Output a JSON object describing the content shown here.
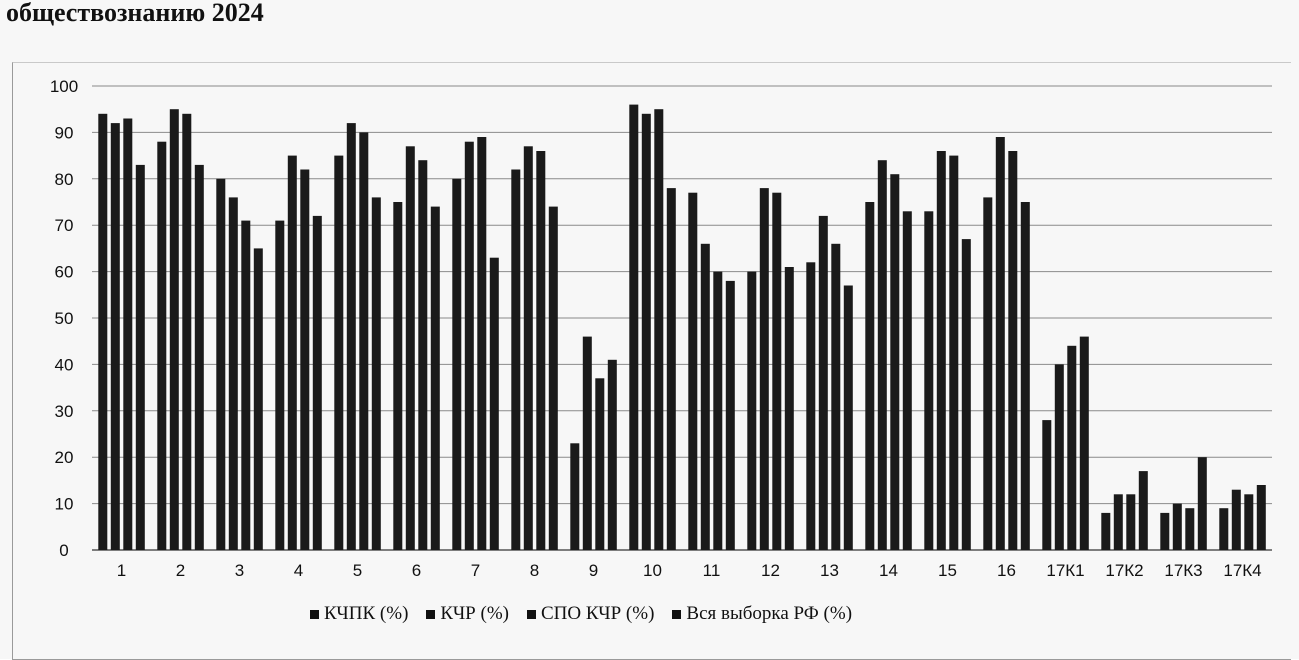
{
  "title_fragment": "обществознанию 2024",
  "chart_data": {
    "type": "bar",
    "categories": [
      "1",
      "2",
      "3",
      "4",
      "5",
      "6",
      "7",
      "8",
      "9",
      "10",
      "11",
      "12",
      "13",
      "14",
      "15",
      "16",
      "17К1",
      "17К2",
      "17К3",
      "17К4"
    ],
    "series": [
      {
        "name": "КЧПК (%)",
        "values": [
          94,
          88,
          80,
          71,
          85,
          75,
          80,
          82,
          23,
          96,
          77,
          60,
          62,
          75,
          73,
          76,
          28,
          8,
          8,
          9
        ]
      },
      {
        "name": "КЧР (%)",
        "values": [
          92,
          95,
          76,
          85,
          92,
          87,
          88,
          87,
          46,
          94,
          66,
          78,
          72,
          84,
          86,
          89,
          40,
          12,
          10,
          13
        ]
      },
      {
        "name": "СПО КЧР (%)",
        "values": [
          93,
          94,
          71,
          82,
          90,
          84,
          89,
          86,
          37,
          95,
          60,
          77,
          66,
          81,
          85,
          86,
          44,
          12,
          9,
          12
        ]
      },
      {
        "name": "Вся выборка РФ (%)",
        "values": [
          83,
          83,
          65,
          72,
          76,
          74,
          63,
          74,
          41,
          78,
          58,
          61,
          57,
          73,
          67,
          75,
          46,
          17,
          20,
          14
        ]
      }
    ],
    "ylim": [
      0,
      100
    ],
    "yticks": [
      "0",
      "10",
      "20",
      "30",
      "40",
      "50",
      "60",
      "70",
      "80",
      "90",
      "100"
    ],
    "grid": true,
    "legend_position": "bottom",
    "colors": [
      "#1a1a1a",
      "#1a1a1a",
      "#1a1a1a",
      "#1a1a1a"
    ]
  }
}
